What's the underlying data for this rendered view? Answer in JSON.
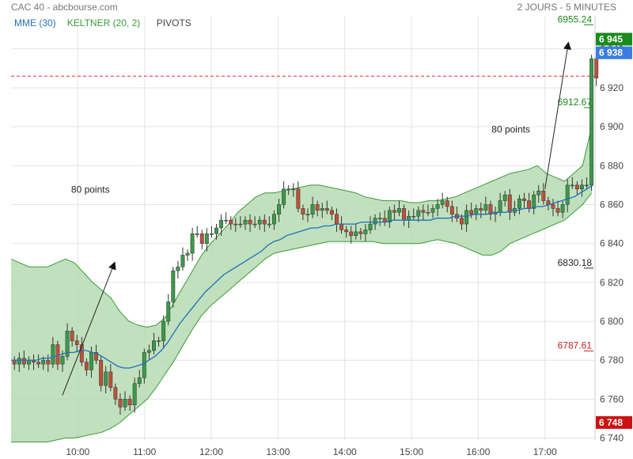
{
  "header": {
    "title": "CAC 40 - abcbourse.com",
    "period": "2 JOURS - 5 MINUTES"
  },
  "legend": [
    {
      "label": "MME (30)",
      "color": "#1f6fbf"
    },
    {
      "label": "KELTNER (20, 2)",
      "color": "#3a9a3a"
    },
    {
      "label": "PIVOTS",
      "color": "#444444"
    }
  ],
  "annotations": [
    {
      "text": "80 points",
      "x": 11.4,
      "y": 6865
    },
    {
      "text": "80 points",
      "x": 16.2,
      "y": 6898
    }
  ],
  "price_tags": [
    {
      "label": "6 945",
      "value": 6945,
      "color": "#1b8a1b"
    },
    {
      "label": "6 938",
      "value": 6938,
      "color": "#3b7de0"
    },
    {
      "label": "6 748",
      "value": 6748,
      "color": "#cc1111"
    }
  ],
  "pivots": [
    {
      "label": "6955.24",
      "value": 6955.24,
      "color": "#1b8a1b"
    },
    {
      "label": "6912.67",
      "value": 6912.67,
      "color": "#1b8a1b"
    },
    {
      "label": "6830.18",
      "value": 6830.18,
      "color": "#222222"
    },
    {
      "label": "6787.61",
      "value": 6787.61,
      "color": "#cc2222"
    }
  ],
  "colors": {
    "up": "#3a9a4a",
    "down": "#c0503a",
    "mme": "#1f6fbf",
    "keltner_line": "#3a9a3a",
    "keltner_fill": "#b6dbb2",
    "grid": "#e4e4e4",
    "ref_line": "#e03030"
  },
  "chart_data": {
    "type": "candlestick",
    "x_ticks": [
      {
        "label": "10:00",
        "value": 10
      },
      {
        "label": "11:00",
        "value": 11
      },
      {
        "label": "12:00",
        "value": 12
      },
      {
        "label": "13:00",
        "value": 13
      },
      {
        "label": "14:00",
        "value": 14
      },
      {
        "label": "15:00",
        "value": 15
      },
      {
        "label": "16:00",
        "value": 16
      },
      {
        "label": "17:00",
        "value": 17
      }
    ],
    "y_ticks": [
      {
        "label": "6 740",
        "value": 6740
      },
      {
        "label": "6 760",
        "value": 6760
      },
      {
        "label": "6 780",
        "value": 6780
      },
      {
        "label": "6 800",
        "value": 6800
      },
      {
        "label": "6 820",
        "value": 6820
      },
      {
        "label": "6 840",
        "value": 6840
      },
      {
        "label": "6 860",
        "value": 6860
      },
      {
        "label": "6 880",
        "value": 6880
      },
      {
        "label": "6 900",
        "value": 6900
      },
      {
        "label": "6 920",
        "value": 6920
      },
      {
        "label": "6 940",
        "value": 6940
      }
    ],
    "xlim": [
      9.0,
      17.75
    ],
    "ylim": [
      6739,
      6957
    ],
    "reference_line": 6926,
    "grid": true,
    "candles_close": [
      6778,
      6781,
      6778,
      6780,
      6779,
      6778,
      6780,
      6778,
      6788,
      6778,
      6782,
      6795,
      6790,
      6788,
      6779,
      6775,
      6784,
      6780,
      6767,
      6774,
      6766,
      6760,
      6756,
      6760,
      6757,
      6768,
      6771,
      6784,
      6785,
      6790,
      6790,
      6800,
      6810,
      6826,
      6828,
      6834,
      6835,
      6845,
      6845,
      6840,
      6845,
      6845,
      6848,
      6852,
      6852,
      6850,
      6850,
      6850,
      6852,
      6850,
      6850,
      6852,
      6850,
      6850,
      6855,
      6860,
      6868,
      6868,
      6868,
      6858,
      6855,
      6855,
      6860,
      6857,
      6858,
      6857,
      6855,
      6850,
      6847,
      6846,
      6844,
      6846,
      6845,
      6847,
      6850,
      6853,
      6853,
      6851,
      6857,
      6856,
      6858,
      6852,
      6854,
      6854,
      6857,
      6856,
      6856,
      6858,
      6860,
      6862,
      6859,
      6855,
      6853,
      6850,
      6857,
      6855,
      6858,
      6857,
      6860,
      6855,
      6856,
      6862,
      6865,
      6856,
      6858,
      6863,
      6862,
      6858,
      6865,
      6867,
      6862,
      6860,
      6858,
      6856,
      6860,
      6870,
      6870,
      6868,
      6870,
      6870,
      6935,
      6925
    ],
    "ema30": [
      6780,
      6780,
      6780,
      6780,
      6780,
      6781,
      6781,
      6782,
      6783,
      6784,
      6784,
      6785,
      6785,
      6784,
      6783,
      6781,
      6779,
      6777,
      6776,
      6776,
      6777,
      6778,
      6780,
      6782,
      6785,
      6789,
      6794,
      6799,
      6803,
      6807,
      6811,
      6815,
      6818,
      6821,
      6824,
      6826,
      6828,
      6830,
      6832,
      6834,
      6836,
      6839,
      6841,
      6842,
      6844,
      6845,
      6846,
      6847,
      6848,
      6848,
      6849,
      6849,
      6850,
      6850,
      6850,
      6850,
      6851,
      6851,
      6851,
      6851,
      6851,
      6852,
      6852,
      6852,
      6852,
      6852,
      6852,
      6852,
      6853,
      6853,
      6853,
      6854,
      6854,
      6854,
      6855,
      6855,
      6855,
      6856,
      6856,
      6856,
      6857,
      6857,
      6858,
      6858,
      6859,
      6859,
      6860,
      6861,
      6862,
      6863,
      6864,
      6866,
      6868,
      6870
    ],
    "keltner_upper": [
      6832,
      6830,
      6828,
      6828,
      6828,
      6830,
      6832,
      6830,
      6825,
      6820,
      6816,
      6812,
      6805,
      6800,
      6798,
      6797,
      6798,
      6802,
      6810,
      6818,
      6826,
      6834,
      6840,
      6845,
      6850,
      6856,
      6860,
      6864,
      6866,
      6866,
      6867,
      6868,
      6869,
      6870,
      6870,
      6869,
      6868,
      6867,
      6866,
      6864,
      6863,
      6862,
      6862,
      6862,
      6861,
      6861,
      6862,
      6862,
      6863,
      6864,
      6866,
      6868,
      6870,
      6872,
      6874,
      6876,
      6877,
      6878,
      6880,
      6876,
      6874,
      6872,
      6876,
      6880,
      6900
    ],
    "keltner_lower": [
      6738,
      6738,
      6738,
      6738,
      6738,
      6739,
      6740,
      6740,
      6741,
      6742,
      6743,
      6745,
      6748,
      6752,
      6756,
      6760,
      6766,
      6773,
      6780,
      6788,
      6796,
      6803,
      6808,
      6812,
      6816,
      6820,
      6824,
      6828,
      6832,
      6835,
      6836,
      6837,
      6838,
      6839,
      6840,
      6841,
      6841,
      6841,
      6841,
      6841,
      6841,
      6840,
      6840,
      6840,
      6840,
      6840,
      6841,
      6842,
      6841,
      6840,
      6838,
      6836,
      6834,
      6834,
      6836,
      6840,
      6842,
      6844,
      6846,
      6848,
      6850,
      6852,
      6856,
      6860,
      6866
    ]
  }
}
